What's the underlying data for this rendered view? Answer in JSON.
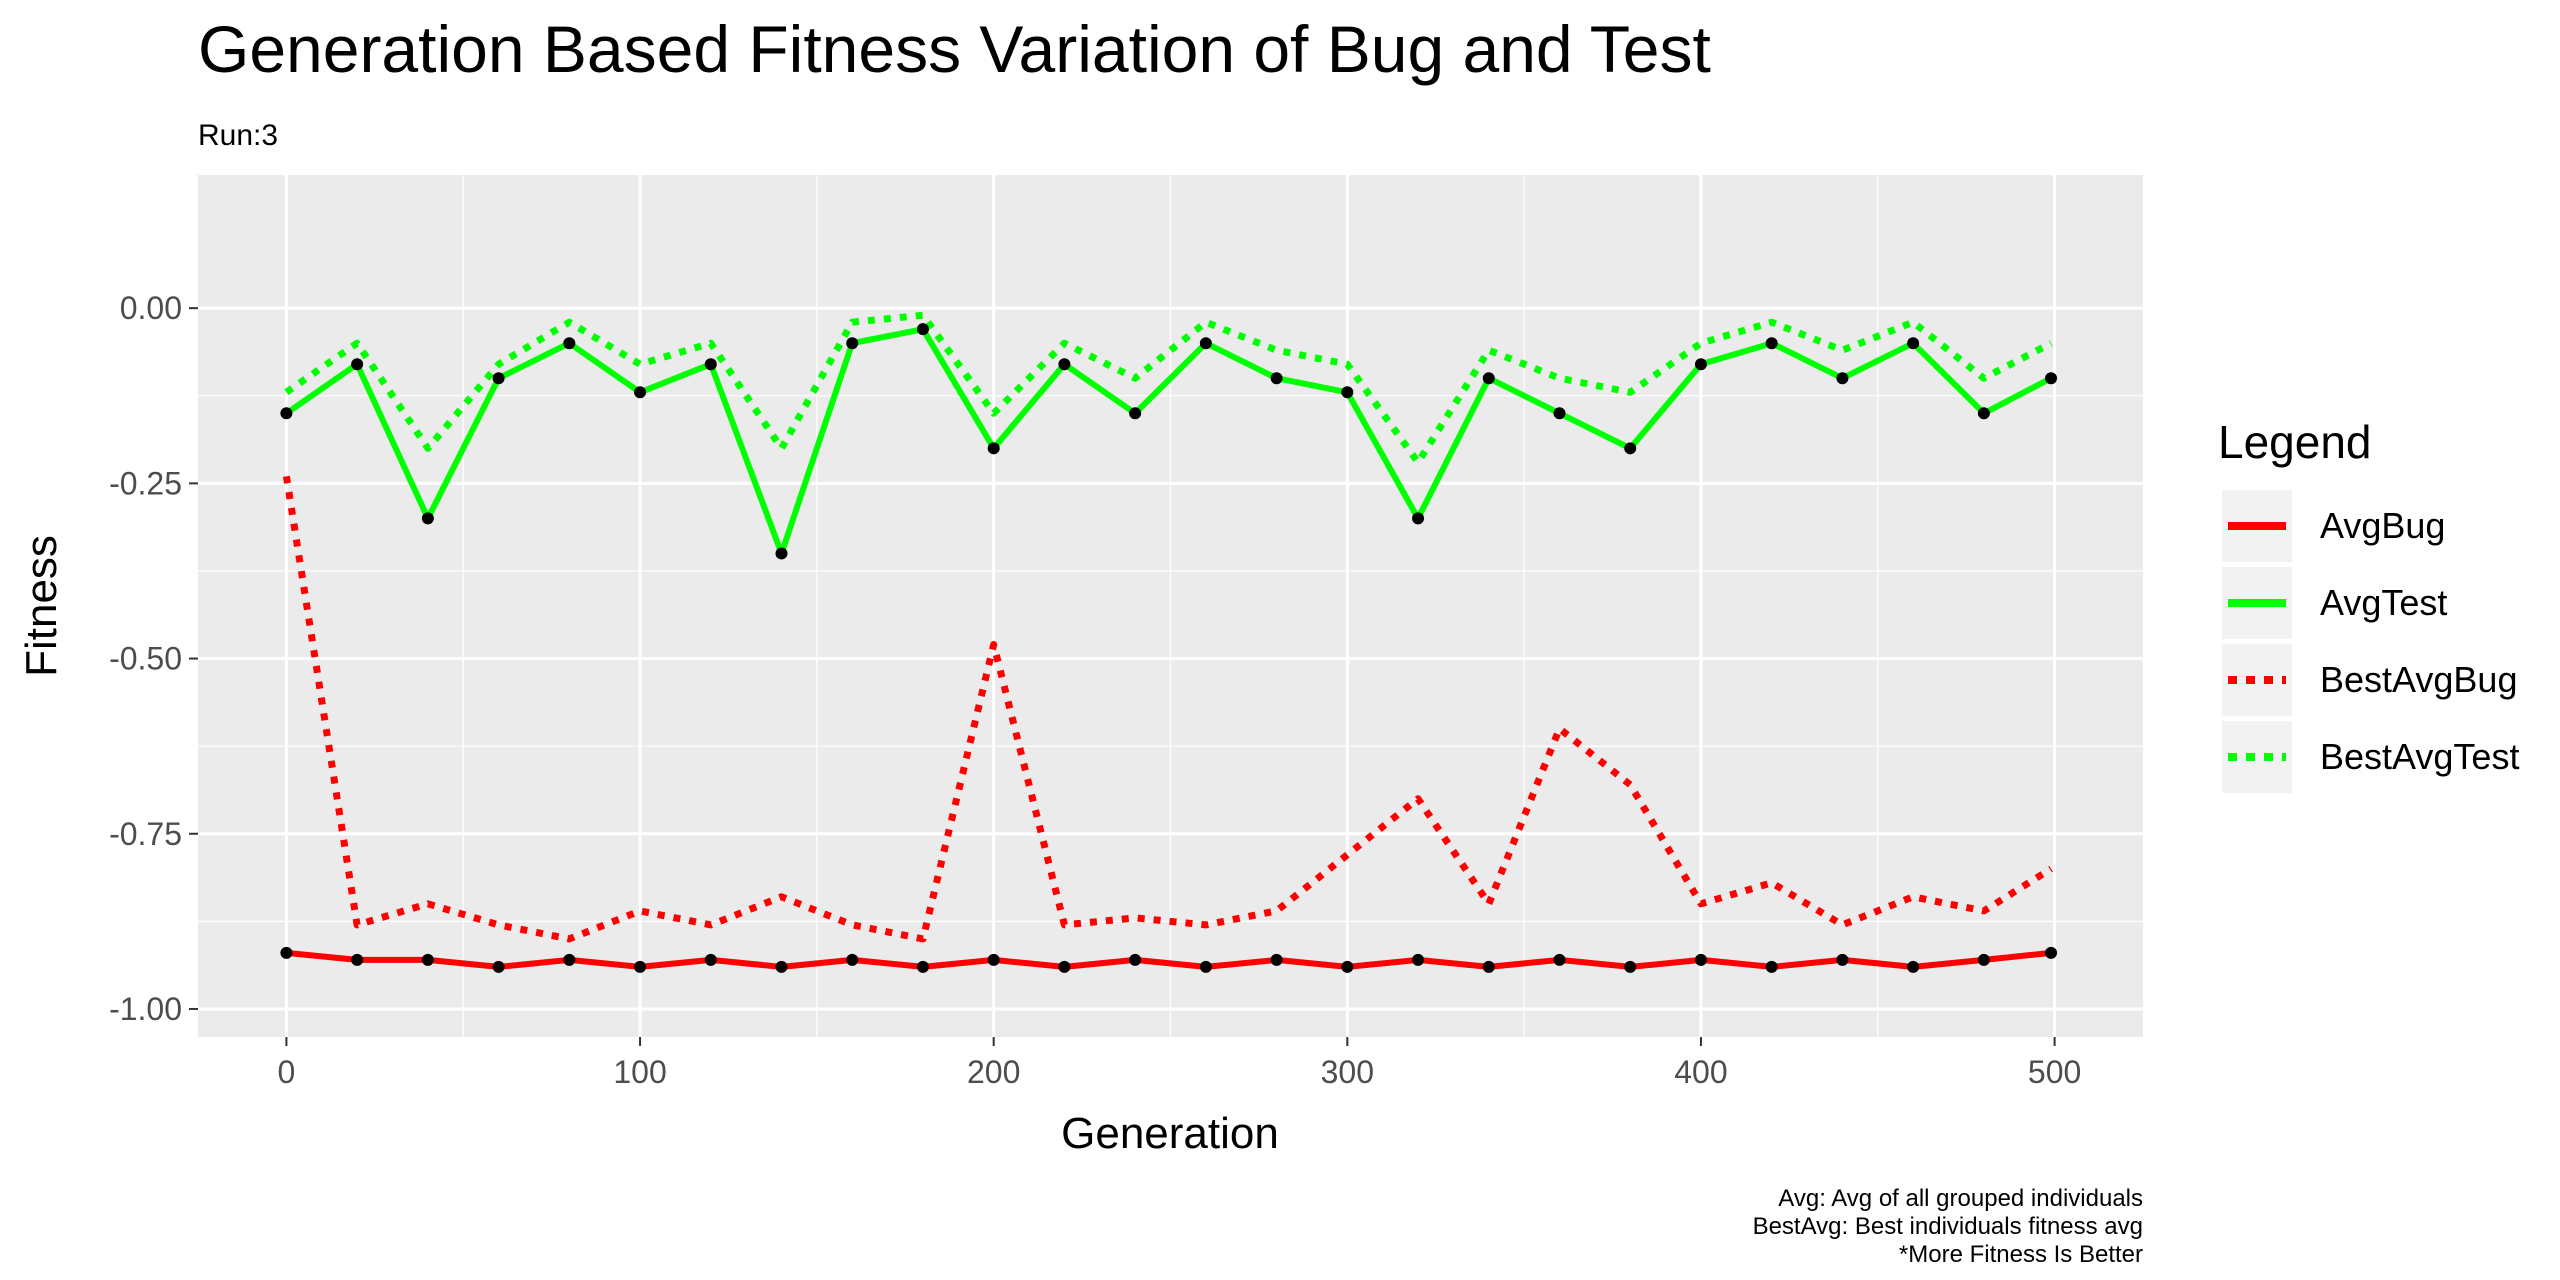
{
  "chart_data": {
    "type": "line",
    "title": "Generation Based Fitness Variation of Bug and Test",
    "subtitle": "Run:3",
    "xlabel": "Generation",
    "ylabel": "Fitness",
    "xlim": [
      -25,
      525
    ],
    "ylim": [
      -1.04,
      0.19
    ],
    "x_ticks": [
      0,
      100,
      200,
      300,
      400,
      500
    ],
    "x_tick_labels": [
      "0",
      "100",
      "200",
      "300",
      "400",
      "500"
    ],
    "y_ticks": [
      -1.0,
      -0.75,
      -0.5,
      -0.25,
      0.0
    ],
    "y_tick_labels": [
      "-1.00",
      "-0.75",
      "-0.50",
      "-0.25",
      "0.00"
    ],
    "grid": true,
    "legend": {
      "title": "Legend",
      "position": "right",
      "items": [
        {
          "label": "AvgBug",
          "color": "#ff0000",
          "style": "solid"
        },
        {
          "label": "AvgTest",
          "color": "#00ff00",
          "style": "solid"
        },
        {
          "label": "BestAvgBug",
          "color": "#ff0000",
          "style": "dotted"
        },
        {
          "label": "BestAvgTest",
          "color": "#00ff00",
          "style": "dotted"
        }
      ]
    },
    "caption": [
      "Avg: Avg of all grouped individuals",
      "BestAvg: Best individuals fitness avg",
      "*More Fitness Is Better"
    ],
    "x": [
      0,
      20,
      40,
      60,
      80,
      100,
      120,
      140,
      160,
      180,
      200,
      220,
      240,
      260,
      280,
      300,
      320,
      340,
      360,
      380,
      400,
      420,
      440,
      460,
      480,
      499
    ],
    "series": [
      {
        "name": "AvgBug",
        "color": "#ff0000",
        "style": "solid",
        "values": [
          -0.92,
          -0.93,
          -0.93,
          -0.94,
          -0.93,
          -0.94,
          -0.93,
          -0.94,
          -0.93,
          -0.94,
          -0.93,
          -0.94,
          -0.93,
          -0.94,
          -0.93,
          -0.94,
          -0.93,
          -0.94,
          -0.93,
          -0.94,
          -0.93,
          -0.94,
          -0.93,
          -0.94,
          -0.93,
          -0.92
        ]
      },
      {
        "name": "AvgTest",
        "color": "#00ff00",
        "style": "solid",
        "values": [
          -0.15,
          -0.08,
          -0.3,
          -0.1,
          -0.05,
          -0.12,
          -0.08,
          -0.35,
          -0.05,
          -0.03,
          -0.2,
          -0.08,
          -0.15,
          -0.05,
          -0.1,
          -0.12,
          -0.3,
          -0.1,
          -0.15,
          -0.2,
          -0.08,
          -0.05,
          -0.1,
          -0.05,
          -0.15,
          -0.1
        ]
      },
      {
        "name": "BestAvgBug",
        "color": "#ff0000",
        "style": "dotted",
        "values": [
          -0.24,
          -0.88,
          -0.85,
          -0.88,
          -0.9,
          -0.86,
          -0.88,
          -0.84,
          -0.88,
          -0.9,
          -0.48,
          -0.88,
          -0.87,
          -0.88,
          -0.86,
          -0.78,
          -0.7,
          -0.85,
          -0.6,
          -0.68,
          -0.85,
          -0.82,
          -0.88,
          -0.84,
          -0.86,
          -0.8
        ]
      },
      {
        "name": "BestAvgTest",
        "color": "#00ff00",
        "style": "dotted",
        "values": [
          -0.12,
          -0.05,
          -0.2,
          -0.08,
          -0.02,
          -0.08,
          -0.05,
          -0.2,
          -0.02,
          -0.01,
          -0.15,
          -0.05,
          -0.1,
          -0.02,
          -0.06,
          -0.08,
          -0.22,
          -0.06,
          -0.1,
          -0.12,
          -0.05,
          -0.02,
          -0.06,
          -0.02,
          -0.1,
          -0.05
        ]
      }
    ]
  }
}
